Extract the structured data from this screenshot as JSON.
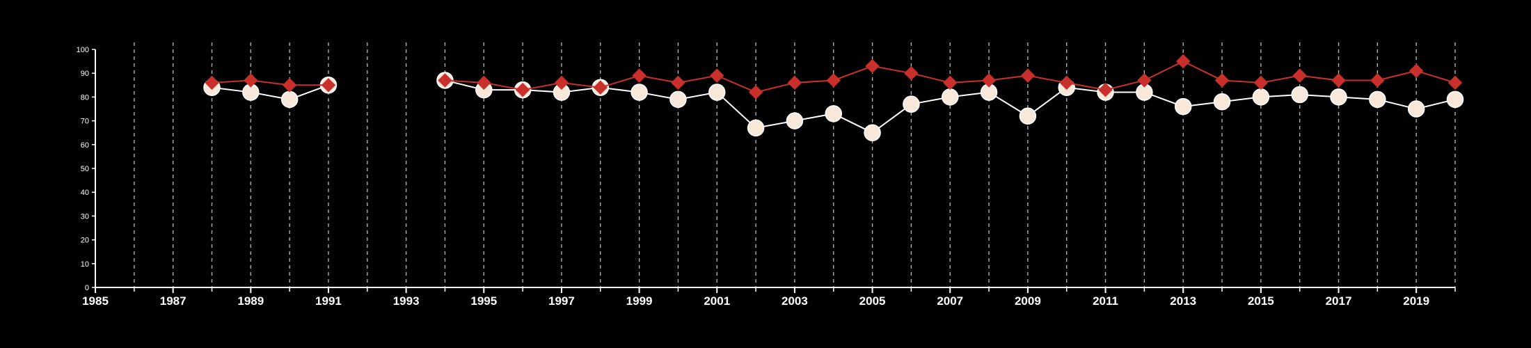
{
  "chart_data": {
    "type": "line",
    "title": "",
    "xlabel": "",
    "ylabel": "",
    "xlim": [
      1985,
      2020
    ],
    "ylim": [
      0,
      100
    ],
    "x_ticks": [
      1985,
      1987,
      1989,
      1991,
      1993,
      1995,
      1997,
      1999,
      2001,
      2003,
      2005,
      2007,
      2009,
      2011,
      2013,
      2015,
      2017,
      2019
    ],
    "y_ticks": [
      0,
      10,
      20,
      30,
      40,
      50,
      60,
      70,
      80,
      90,
      100
    ],
    "vertical_gridlines_years": [
      1986,
      1987,
      1988,
      1989,
      1990,
      1991,
      1992,
      1993,
      1994,
      1995,
      1996,
      1997,
      1998,
      1999,
      2000,
      2001,
      2002,
      2003,
      2004,
      2005,
      2006,
      2007,
      2008,
      2009,
      2010,
      2011,
      2012,
      2013,
      2014,
      2015,
      2016,
      2017,
      2018,
      2019,
      2020
    ],
    "grid": "vertical dashed",
    "legend": "none",
    "series": [
      {
        "marker": "circle",
        "color": "#ffffff",
        "fill": "#f7e8da",
        "segments": [
          {
            "x": [
              1988,
              1989,
              1990,
              1991
            ],
            "y": [
              84,
              82,
              79,
              85
            ]
          },
          {
            "x": [
              1994,
              1995,
              1996,
              1997,
              1998,
              1999,
              2000,
              2001,
              2002,
              2003,
              2004,
              2005,
              2006,
              2007,
              2008,
              2009,
              2010,
              2011,
              2012,
              2013,
              2014,
              2015,
              2016,
              2017,
              2018,
              2019,
              2020
            ],
            "y": [
              87,
              83,
              83,
              82,
              84,
              82,
              79,
              82,
              67,
              70,
              73,
              65,
              77,
              80,
              82,
              72,
              84,
              82,
              82,
              76,
              78,
              80,
              81,
              80,
              79,
              75,
              79
            ]
          }
        ]
      },
      {
        "marker": "diamond",
        "color": "#c9302c",
        "fill": "#c9302c",
        "segments": [
          {
            "x": [
              1988,
              1989,
              1990,
              1991
            ],
            "y": [
              86,
              87,
              85,
              85
            ]
          },
          {
            "x": [
              1994,
              1995,
              1996,
              1997,
              1998,
              1999,
              2000,
              2001,
              2002,
              2003,
              2004,
              2005,
              2006,
              2007,
              2008,
              2009,
              2010,
              2011,
              2012,
              2013,
              2014,
              2015,
              2016,
              2017,
              2018,
              2019,
              2020
            ],
            "y": [
              87,
              86,
              83,
              86,
              84,
              89,
              86,
              89,
              82,
              86,
              87,
              93,
              90,
              86,
              87,
              89,
              86,
              83,
              87,
              95,
              87,
              86,
              89,
              87,
              87,
              91,
              86
            ]
          }
        ]
      }
    ]
  },
  "colors": {
    "background": "#000000",
    "axis": "#ffffff",
    "grid": "#bbbbbb"
  }
}
